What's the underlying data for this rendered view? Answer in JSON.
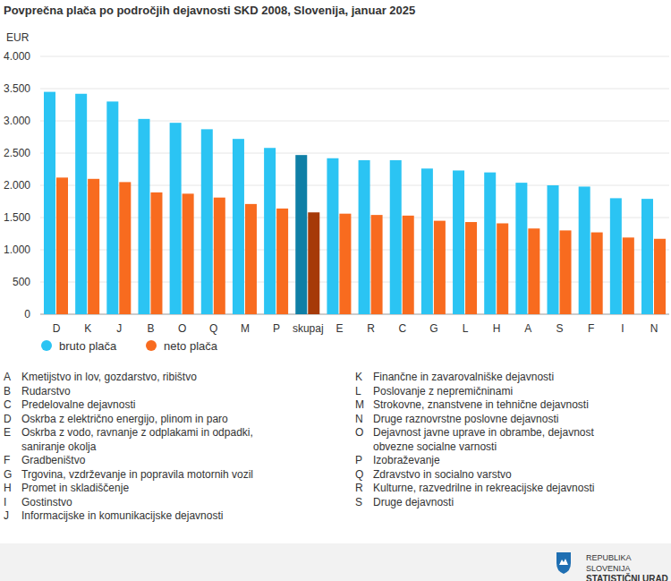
{
  "chart_data": {
    "type": "bar",
    "title": "Povprečna plača po področjih dejavnosti SKD 2008, Slovenija, januar 2025",
    "y_label": "EUR",
    "categories": [
      "D",
      "K",
      "J",
      "B",
      "O",
      "Q",
      "M",
      "P",
      "skupaj",
      "E",
      "R",
      "C",
      "G",
      "L",
      "H",
      "A",
      "S",
      "F",
      "I",
      "N"
    ],
    "series": [
      {
        "name": "bruto plača",
        "color": "#2bc4f3",
        "colors": [
          "#2bc4f3",
          "#2bc4f3",
          "#2bc4f3",
          "#2bc4f3",
          "#2bc4f3",
          "#2bc4f3",
          "#2bc4f3",
          "#2bc4f3",
          "#0f7fa6",
          "#2bc4f3",
          "#2bc4f3",
          "#2bc4f3",
          "#2bc4f3",
          "#2bc4f3",
          "#2bc4f3",
          "#2bc4f3",
          "#2bc4f3",
          "#2bc4f3",
          "#2bc4f3",
          "#2bc4f3"
        ],
        "values": [
          3450,
          3420,
          3300,
          3030,
          2970,
          2870,
          2720,
          2580,
          2470,
          2420,
          2390,
          2390,
          2260,
          2230,
          2200,
          2040,
          2000,
          1980,
          1800,
          1790
        ]
      },
      {
        "name": "neto plača",
        "color": "#f86b1f",
        "colors": [
          "#f86b1f",
          "#f86b1f",
          "#f86b1f",
          "#f86b1f",
          "#f86b1f",
          "#f86b1f",
          "#f86b1f",
          "#f86b1f",
          "#a63a08",
          "#f86b1f",
          "#f86b1f",
          "#f86b1f",
          "#f86b1f",
          "#f86b1f",
          "#f86b1f",
          "#f86b1f",
          "#f86b1f",
          "#f86b1f",
          "#f86b1f",
          "#f86b1f"
        ],
        "values": [
          2120,
          2100,
          2050,
          1890,
          1870,
          1810,
          1710,
          1640,
          1580,
          1560,
          1540,
          1530,
          1450,
          1430,
          1410,
          1330,
          1300,
          1270,
          1190,
          1170
        ]
      }
    ],
    "ylim": [
      0,
      4000
    ],
    "yticks": [
      0,
      500,
      {
        "value": 1000,
        "label": "1.000"
      },
      {
        "value": 1500,
        "label": "1.500"
      },
      {
        "value": 2000,
        "label": "2.000"
      },
      {
        "value": 2500,
        "label": "2.500"
      },
      {
        "value": 3000,
        "label": "3.000"
      },
      {
        "value": 3500,
        "label": "3.500"
      },
      {
        "value": 4000,
        "label": "4.000"
      }
    ],
    "grid": true,
    "legend": "bottom-left",
    "annotations": [
      {
        "code": "A",
        "label": "Kmetijstvo in lov, gozdarstvo, ribištvo"
      },
      {
        "code": "B",
        "label": "Rudarstvo"
      },
      {
        "code": "C",
        "label": "Predelovalne dejavnosti"
      },
      {
        "code": "D",
        "label": "Oskrba z električno energijo, plinom in paro"
      },
      {
        "code": "E",
        "label": "Oskrba z vodo, ravnanje z odplakami in odpadki, saniranje okolja"
      },
      {
        "code": "F",
        "label": "Gradbeništvo"
      },
      {
        "code": "G",
        "label": "Trgovina, vzdrževanje in popravila motornih vozil"
      },
      {
        "code": "H",
        "label": "Promet in skladiščenje"
      },
      {
        "code": "I",
        "label": "Gostinstvo"
      },
      {
        "code": "J",
        "label": "Informacijske in komunikacijske dejavnosti"
      },
      {
        "code": "K",
        "label": "Finančne in zavarovalniške dejavnosti"
      },
      {
        "code": "L",
        "label": "Poslovanje z nepremičninami"
      },
      {
        "code": "M",
        "label": "Strokovne, znanstvene in tehnične dejavnosti"
      },
      {
        "code": "N",
        "label": "Druge raznovrstne poslovne dejavnosti"
      },
      {
        "code": "O",
        "label": "Dejavnost javne uprave in obrambe, dejavnost obvezne socialne varnosti"
      },
      {
        "code": "P",
        "label": "Izobraževanje"
      },
      {
        "code": "Q",
        "label": "Zdravstvo in socialno varstvo"
      },
      {
        "code": "R",
        "label": "Kulturne, razvedrilne in rekreacijske dejavnosti"
      },
      {
        "code": "S",
        "label": "Druge dejavnosti"
      }
    ]
  },
  "footer": [
    "REPUBLIKA SLOVENIJA",
    "STATISTIČNI URAD"
  ]
}
